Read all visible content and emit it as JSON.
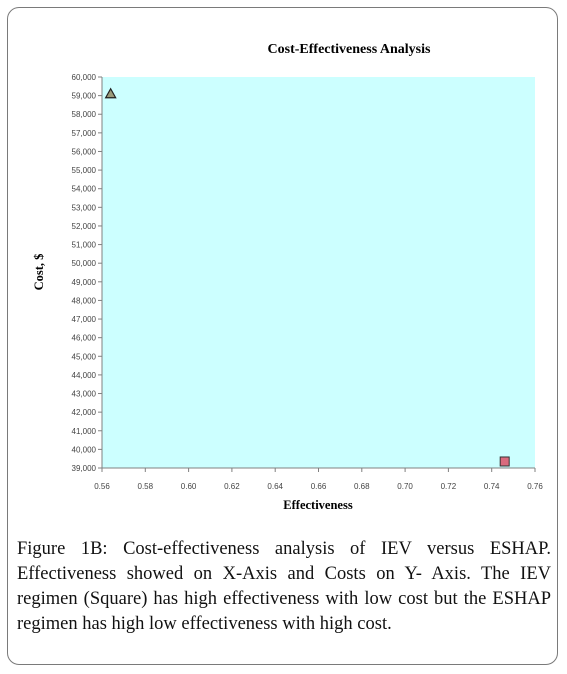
{
  "chart_data": {
    "type": "scatter",
    "title": "Cost-Effectiveness Analysis",
    "xlabel": "Effectiveness",
    "ylabel": "Cost, $",
    "xlim": [
      0.56,
      0.76
    ],
    "ylim": [
      39000,
      60000
    ],
    "x_ticks": [
      0.56,
      0.58,
      0.6,
      0.62,
      0.64,
      0.66,
      0.68,
      0.7,
      0.72,
      0.74,
      0.76
    ],
    "x_tick_labels": [
      "0.56",
      "0.58",
      "0.60",
      "0.62",
      "0.64",
      "0.66",
      "0.68",
      "0.70",
      "0.72",
      "0.74",
      "0.76"
    ],
    "y_ticks": [
      39000,
      40000,
      41000,
      42000,
      43000,
      44000,
      45000,
      46000,
      47000,
      48000,
      49000,
      50000,
      51000,
      52000,
      53000,
      54000,
      55000,
      56000,
      57000,
      58000,
      59000,
      60000
    ],
    "y_tick_labels": [
      "39,000",
      "40,000",
      "41,000",
      "42,000",
      "43,000",
      "44,000",
      "45,000",
      "46,000",
      "47,000",
      "48,000",
      "49,000",
      "50,000",
      "51,000",
      "52,000",
      "53,000",
      "54,000",
      "55,000",
      "56,000",
      "57,000",
      "58,000",
      "59,000",
      "60,000"
    ],
    "grid": false,
    "plot_background": "#ccffff",
    "points": [
      {
        "marker": "triangle",
        "x": 0.564,
        "y": 59100,
        "color": "#9b9b7a"
      },
      {
        "marker": "square",
        "x": 0.746,
        "y": 39350,
        "color": "#d96b7e"
      }
    ]
  },
  "caption": "Figure 1B: Cost-effectiveness analysis of IEV versus ESHAP. Effectiveness showed on X-Axis and Costs on Y- Axis. The IEV regimen (Square) has high effectiveness with low cost but the ESHAP regimen has high low effectiveness with high cost."
}
